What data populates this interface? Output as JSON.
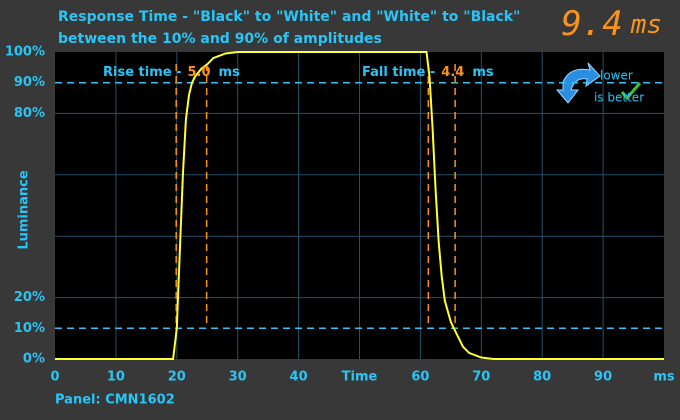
{
  "chart_data": {
    "type": "line",
    "title": "Response Time - \"Black\" to \"White\" and \"White\" to \"Black\"",
    "subtitle": "between the 10% and 90% of amplitudes",
    "total": {
      "value": 9.4,
      "unit": "ms"
    },
    "y_label": "Luminance",
    "footer": "Panel: CMN1602",
    "badge": {
      "line1": "lower",
      "line2": "is better"
    },
    "xlim": [
      0,
      100
    ],
    "ylim": [
      0,
      100
    ],
    "xticks": [
      0,
      10,
      20,
      30,
      40,
      {
        "value": 50,
        "label": "Time"
      },
      60,
      70,
      80,
      90,
      {
        "value": 100,
        "label": "ms"
      }
    ],
    "yticks": [
      {
        "value": 0,
        "label": "0%"
      },
      {
        "value": 10,
        "label": "10%"
      },
      {
        "value": 20,
        "label": "20%"
      },
      {
        "value": 80,
        "label": "80%"
      },
      {
        "value": 90,
        "label": "90%"
      },
      {
        "value": 100,
        "label": "100%"
      }
    ],
    "grid": true,
    "xgrid_step": 10,
    "ygrid_step": 20,
    "threshold_lines": [
      10,
      90
    ],
    "threshold_color": "#29c5f6",
    "marker_color": "#f7941d",
    "rise": {
      "label": "Rise time -",
      "value": 5,
      "value_label": "5.0",
      "unit": "ms",
      "start": 19.9,
      "end": 24.9
    },
    "fall": {
      "label": "Fall time -",
      "value": 4.4,
      "unit": "ms",
      "start": 61.3,
      "end": 65.7
    },
    "series": [
      {
        "name": "Luminance",
        "color": "#ffff33",
        "x": [
          0,
          19.4,
          20,
          20.5,
          21,
          21.5,
          22,
          22.5,
          23,
          24,
          25,
          26,
          28,
          30,
          61,
          61.5,
          62,
          62.5,
          63,
          63.5,
          64,
          65,
          66,
          67,
          68,
          70,
          72,
          100
        ],
        "values": [
          0,
          0,
          10,
          35,
          60,
          78,
          86,
          90,
          92,
          94.5,
          96,
          98,
          99.5,
          100,
          100,
          92,
          75,
          55,
          38,
          27,
          19,
          12,
          8,
          4,
          2,
          0.5,
          0,
          0
        ]
      }
    ]
  }
}
